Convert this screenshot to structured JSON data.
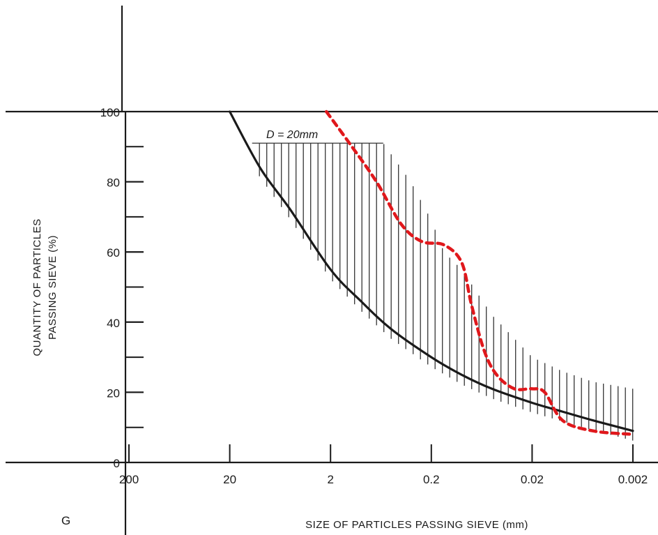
{
  "chart_data": {
    "type": "line",
    "title": "",
    "annotation": "D = 20mm",
    "corner_label": "G",
    "xlabel": "SIZE OF PARTICLES PASSING SIEVE (mm)",
    "ylabel_line1": "QUANTITY OF PARTICLES",
    "ylabel_line2": "PASSING SIEVE (%)",
    "x_scale": "log-reversed",
    "xlim": [
      200,
      0.002
    ],
    "ylim": [
      0,
      100
    ],
    "x_ticks": [
      200,
      20,
      2,
      0.2,
      0.02,
      0.002
    ],
    "x_tick_labels": [
      "200",
      "20",
      "2",
      "0.2",
      "0.02",
      "0.002"
    ],
    "y_ticks": [
      0,
      20,
      40,
      60,
      80,
      100
    ],
    "y_tick_labels": [
      "0",
      "20",
      "40",
      "60",
      "80",
      "100"
    ],
    "grid": false,
    "series": [
      {
        "style": "solid",
        "color": "#1a1a1a",
        "points": [
          [
            20,
            100
          ],
          [
            10,
            84
          ],
          [
            5,
            72
          ],
          [
            2,
            55
          ],
          [
            1,
            46
          ],
          [
            0.5,
            38
          ],
          [
            0.2,
            30
          ],
          [
            0.1,
            25
          ],
          [
            0.05,
            21
          ],
          [
            0.02,
            17
          ],
          [
            0.01,
            14.5
          ],
          [
            0.005,
            12
          ],
          [
            0.002,
            9
          ]
        ]
      },
      {
        "style": "dashed",
        "color": "#e0181c",
        "points": [
          [
            2.2,
            100
          ],
          [
            1.3,
            91
          ],
          [
            0.7,
            80
          ],
          [
            0.4,
            68
          ],
          [
            0.25,
            63
          ],
          [
            0.15,
            62
          ],
          [
            0.1,
            57
          ],
          [
            0.08,
            45
          ],
          [
            0.06,
            32
          ],
          [
            0.045,
            25
          ],
          [
            0.03,
            21
          ],
          [
            0.02,
            21
          ],
          [
            0.015,
            20
          ],
          [
            0.01,
            12
          ],
          [
            0.005,
            9
          ],
          [
            0.002,
            8
          ]
        ]
      }
    ],
    "hatched_band": {
      "upper": [
        [
          12,
          91
        ],
        [
          0.6,
          91
        ],
        [
          0.32,
          80
        ],
        [
          0.2,
          69
        ],
        [
          0.15,
          60
        ],
        [
          0.1,
          55
        ],
        [
          0.05,
          42
        ],
        [
          0.02,
          30
        ],
        [
          0.01,
          26
        ],
        [
          0.005,
          23
        ],
        [
          0.002,
          21
        ]
      ],
      "lower_series_index": 0
    }
  }
}
